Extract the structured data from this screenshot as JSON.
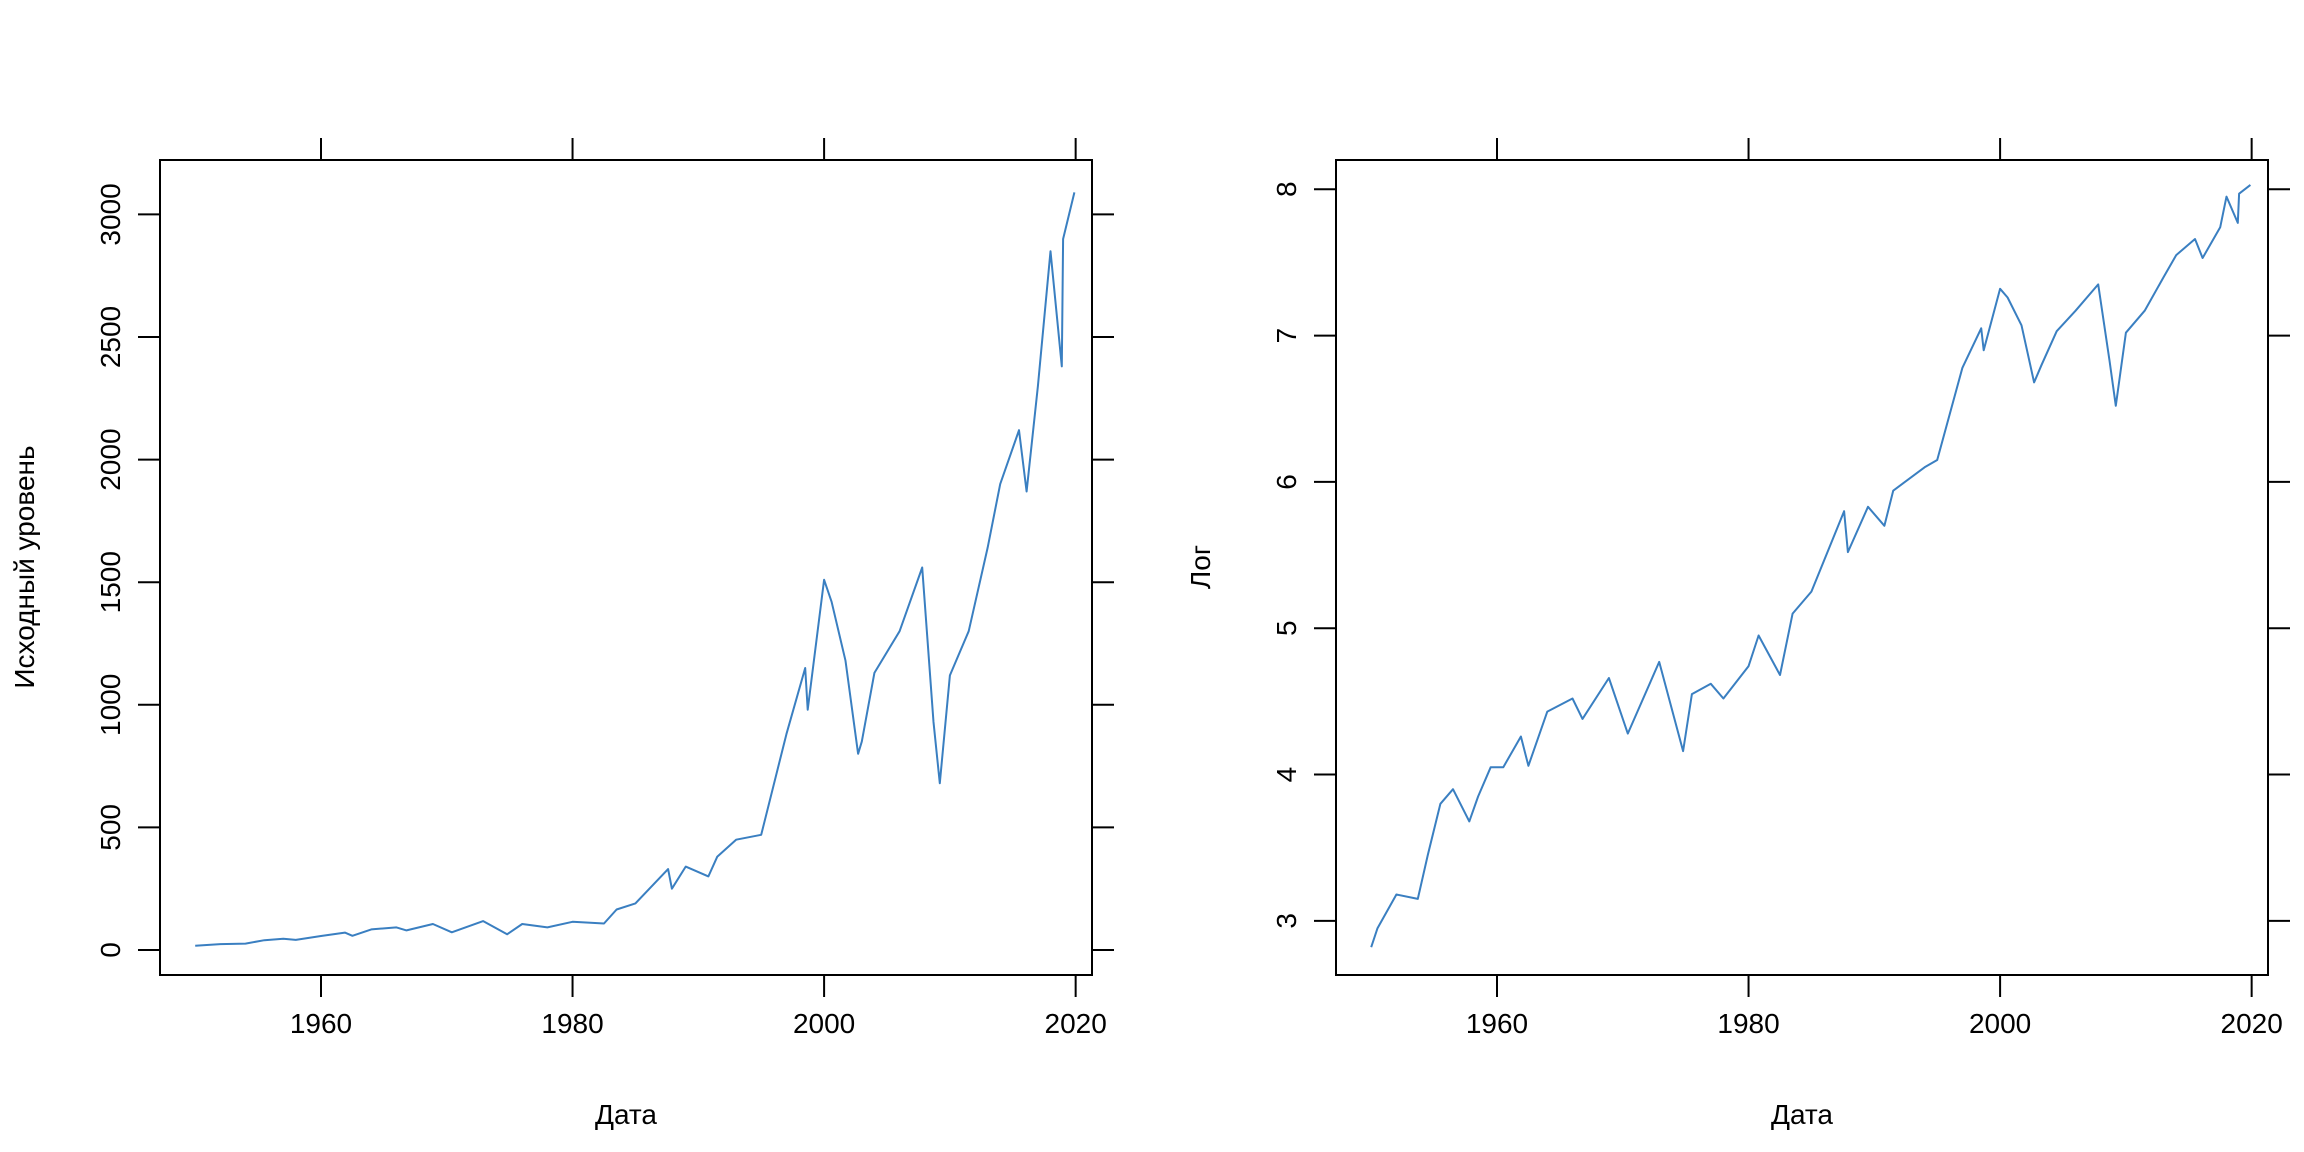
{
  "colors": {
    "series": "#3a7fc1",
    "axis": "#000000",
    "background": "#ffffff"
  },
  "chart_data": [
    {
      "type": "line",
      "title": "",
      "xlabel": "Дата",
      "ylabel": "Исходный уровень",
      "xlim": [
        1947.2,
        2021.3
      ],
      "ylim": [
        -102,
        3222
      ],
      "x_ticks": [
        1960,
        1980,
        2000,
        2020
      ],
      "x_tick_labels": [
        "1960",
        "1980",
        "2000",
        "2020"
      ],
      "y_ticks": [
        0,
        500,
        1000,
        1500,
        2000,
        2500,
        3000
      ],
      "y_tick_labels": [
        "0",
        "500",
        "1000",
        "1500",
        "2000",
        "2500",
        "3000"
      ],
      "grid": false,
      "series": [
        {
          "x": [
            1950.0,
            1952.0,
            1954.0,
            1955.5,
            1957.0,
            1958.0,
            1960.0,
            1961.9,
            1962.5,
            1964.0,
            1966.0,
            1966.8,
            1968.9,
            1970.4,
            1972.9,
            1974.8,
            1976.0,
            1978.0,
            1980.0,
            1982.5,
            1983.5,
            1985.0,
            1987.6,
            1987.9,
            1989.0,
            1990.8,
            1991.5,
            1993.0,
            1995.0,
            1997.0,
            1998.5,
            1998.7,
            2000.0,
            2000.6,
            2001.7,
            2002.7,
            2003.0,
            2004.0,
            2006.0,
            2007.8,
            2008.7,
            2009.2,
            2010.0,
            2011.5,
            2013.0,
            2014.0,
            2015.5,
            2016.1,
            2017.0,
            2018.0,
            2018.9,
            2019.0,
            2019.9
          ],
          "y": [
            17,
            24,
            26,
            40,
            46,
            41,
            57,
            71,
            58,
            84,
            92,
            80,
            106,
            72,
            118,
            64,
            106,
            92,
            115,
            108,
            165,
            190,
            330,
            250,
            340,
            300,
            380,
            450,
            470,
            880,
            1150,
            980,
            1510,
            1420,
            1180,
            800,
            850,
            1130,
            1300,
            1560,
            930,
            680,
            1120,
            1300,
            1640,
            1900,
            2120,
            1870,
            2300,
            2850,
            2380,
            2900,
            3090
          ]
        }
      ]
    },
    {
      "type": "line",
      "title": "",
      "xlabel": "Дата",
      "ylabel": "Лог",
      "xlim": [
        1947.2,
        2021.3
      ],
      "ylim": [
        2.63,
        8.2
      ],
      "x_ticks": [
        1960,
        1980,
        2000,
        2020
      ],
      "x_tick_labels": [
        "1960",
        "1980",
        "2000",
        "2020"
      ],
      "y_ticks": [
        3,
        4,
        5,
        6,
        7,
        8
      ],
      "y_tick_labels": [
        "3",
        "4",
        "5",
        "6",
        "7",
        "8"
      ],
      "grid": false,
      "series": [
        {
          "x": [
            1950.0,
            1950.5,
            1952.0,
            1953.7,
            1954.5,
            1955.5,
            1956.5,
            1957.8,
            1958.5,
            1959.5,
            1960.5,
            1961.9,
            1962.5,
            1964.0,
            1966.0,
            1966.8,
            1968.9,
            1970.4,
            1972.9,
            1974.8,
            1975.5,
            1977.0,
            1978.0,
            1980.0,
            1980.8,
            1982.5,
            1983.5,
            1985.0,
            1987.6,
            1987.9,
            1989.5,
            1990.8,
            1991.5,
            1994.0,
            1995.0,
            1997.0,
            1998.5,
            1998.7,
            2000.0,
            2000.6,
            2001.7,
            2002.7,
            2003.3,
            2004.5,
            2006.0,
            2007.8,
            2008.7,
            2009.2,
            2010.0,
            2011.5,
            2013.0,
            2014.0,
            2015.5,
            2016.1,
            2017.5,
            2018.0,
            2018.9,
            2019.0,
            2019.9
          ],
          "y": [
            2.82,
            2.95,
            3.18,
            3.15,
            3.45,
            3.8,
            3.9,
            3.68,
            3.85,
            4.05,
            4.05,
            4.26,
            4.06,
            4.43,
            4.52,
            4.38,
            4.66,
            4.28,
            4.77,
            4.16,
            4.55,
            4.62,
            4.52,
            4.74,
            4.95,
            4.68,
            5.1,
            5.25,
            5.8,
            5.52,
            5.83,
            5.7,
            5.94,
            6.1,
            6.15,
            6.78,
            7.05,
            6.9,
            7.32,
            7.26,
            7.07,
            6.68,
            6.8,
            7.03,
            7.17,
            7.35,
            6.83,
            6.52,
            7.02,
            7.17,
            7.4,
            7.55,
            7.66,
            7.53,
            7.74,
            7.95,
            7.77,
            7.97,
            8.03
          ]
        }
      ]
    }
  ]
}
